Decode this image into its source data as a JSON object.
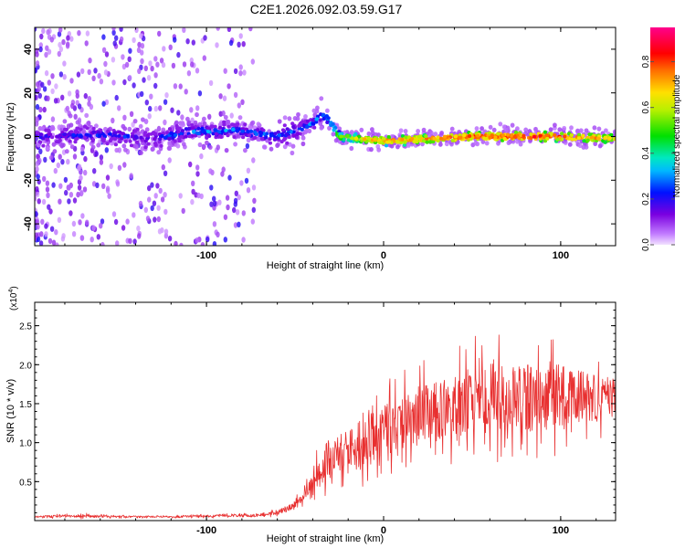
{
  "title": "C2E1.2026.092.03.59.G17",
  "chart_data": [
    {
      "type": "heatmap",
      "name": "spectrogram",
      "xlabel": "Height of straight line (km)",
      "ylabel": "Frequency (Hz)",
      "xlim": [
        -197,
        131
      ],
      "ylim": [
        -50,
        50
      ],
      "xticks": [
        -100,
        0,
        100
      ],
      "xtick_labels": [
        "-100",
        "0",
        "100"
      ],
      "yticks": [
        -40,
        -20,
        0,
        20,
        40
      ],
      "ytick_labels": [
        "-40",
        "-20",
        "0",
        "20",
        "40"
      ],
      "colorbar": {
        "label": "Normalized spectral amplitude",
        "range": [
          0,
          0.95
        ],
        "ticks": [
          0.0,
          0.2,
          0.4,
          0.6,
          0.8
        ],
        "tick_labels": [
          "0.0",
          "0.2",
          "0.4",
          "0.6",
          "0.8"
        ]
      },
      "ridge": [
        {
          "x": -195,
          "f": 0,
          "amp": 0.2
        },
        {
          "x": -160,
          "f": 1,
          "amp": 0.25
        },
        {
          "x": -130,
          "f": -1,
          "amp": 0.22
        },
        {
          "x": -110,
          "f": 2,
          "amp": 0.3
        },
        {
          "x": -85,
          "f": 3,
          "amp": 0.3
        },
        {
          "x": -60,
          "f": 0,
          "amp": 0.28
        },
        {
          "x": -45,
          "f": 4,
          "amp": 0.3
        },
        {
          "x": -33,
          "f": 10,
          "amp": 0.3
        },
        {
          "x": -25,
          "f": 0,
          "amp": 0.6
        },
        {
          "x": 0,
          "f": -2,
          "amp": 0.78
        },
        {
          "x": 25,
          "f": -1,
          "amp": 0.8
        },
        {
          "x": 50,
          "f": 0,
          "amp": 0.85
        },
        {
          "x": 75,
          "f": 0,
          "amp": 0.88
        },
        {
          "x": 100,
          "f": 0,
          "amp": 0.85
        },
        {
          "x": 131,
          "f": -1,
          "amp": 0.72
        }
      ]
    },
    {
      "type": "line",
      "name": "snr",
      "xlabel": "Height of straight line (km)",
      "ylabel": "SNR (10 * v/v)",
      "yscale_label": "(x10",
      "yscale_exponent": "4",
      "xlim": [
        -197,
        131
      ],
      "ylim": [
        0,
        2.8
      ],
      "xticks": [
        -100,
        0,
        100
      ],
      "xtick_labels": [
        "-100",
        "0",
        "100"
      ],
      "yticks": [
        0.5,
        1.0,
        1.5,
        2.0,
        2.5
      ],
      "ytick_labels": [
        "0.5",
        "1.0",
        "1.5",
        "2.0",
        "2.5"
      ],
      "series": [
        {
          "name": "SNR",
          "color": "#e83030",
          "envelope_x": [
            -197,
            -170,
            -150,
            -120,
            -100,
            -90,
            -75,
            -60,
            -50,
            -45,
            -40,
            -38,
            -35,
            -30,
            -25,
            -20,
            -10,
            0,
            10,
            20,
            30,
            40,
            50,
            60,
            70,
            80,
            90,
            100,
            110,
            120,
            131
          ],
          "envelope_mean": [
            0.05,
            0.06,
            0.05,
            0.05,
            0.06,
            0.07,
            0.06,
            0.1,
            0.2,
            0.3,
            0.45,
            0.7,
            0.6,
            0.7,
            0.85,
            0.9,
            1.0,
            1.15,
            1.25,
            1.35,
            1.4,
            1.45,
            1.55,
            1.6,
            1.6,
            1.6,
            1.55,
            1.6,
            1.6,
            1.55,
            1.6
          ],
          "envelope_spread": [
            0.02,
            0.04,
            0.02,
            0.02,
            0.03,
            0.04,
            0.03,
            0.05,
            0.1,
            0.15,
            0.3,
            0.5,
            0.4,
            0.45,
            0.5,
            0.55,
            0.6,
            0.6,
            0.7,
            0.7,
            0.75,
            0.8,
            0.8,
            0.85,
            0.9,
            0.8,
            0.8,
            0.75,
            0.65,
            0.55,
            0.45
          ]
        }
      ]
    }
  ]
}
